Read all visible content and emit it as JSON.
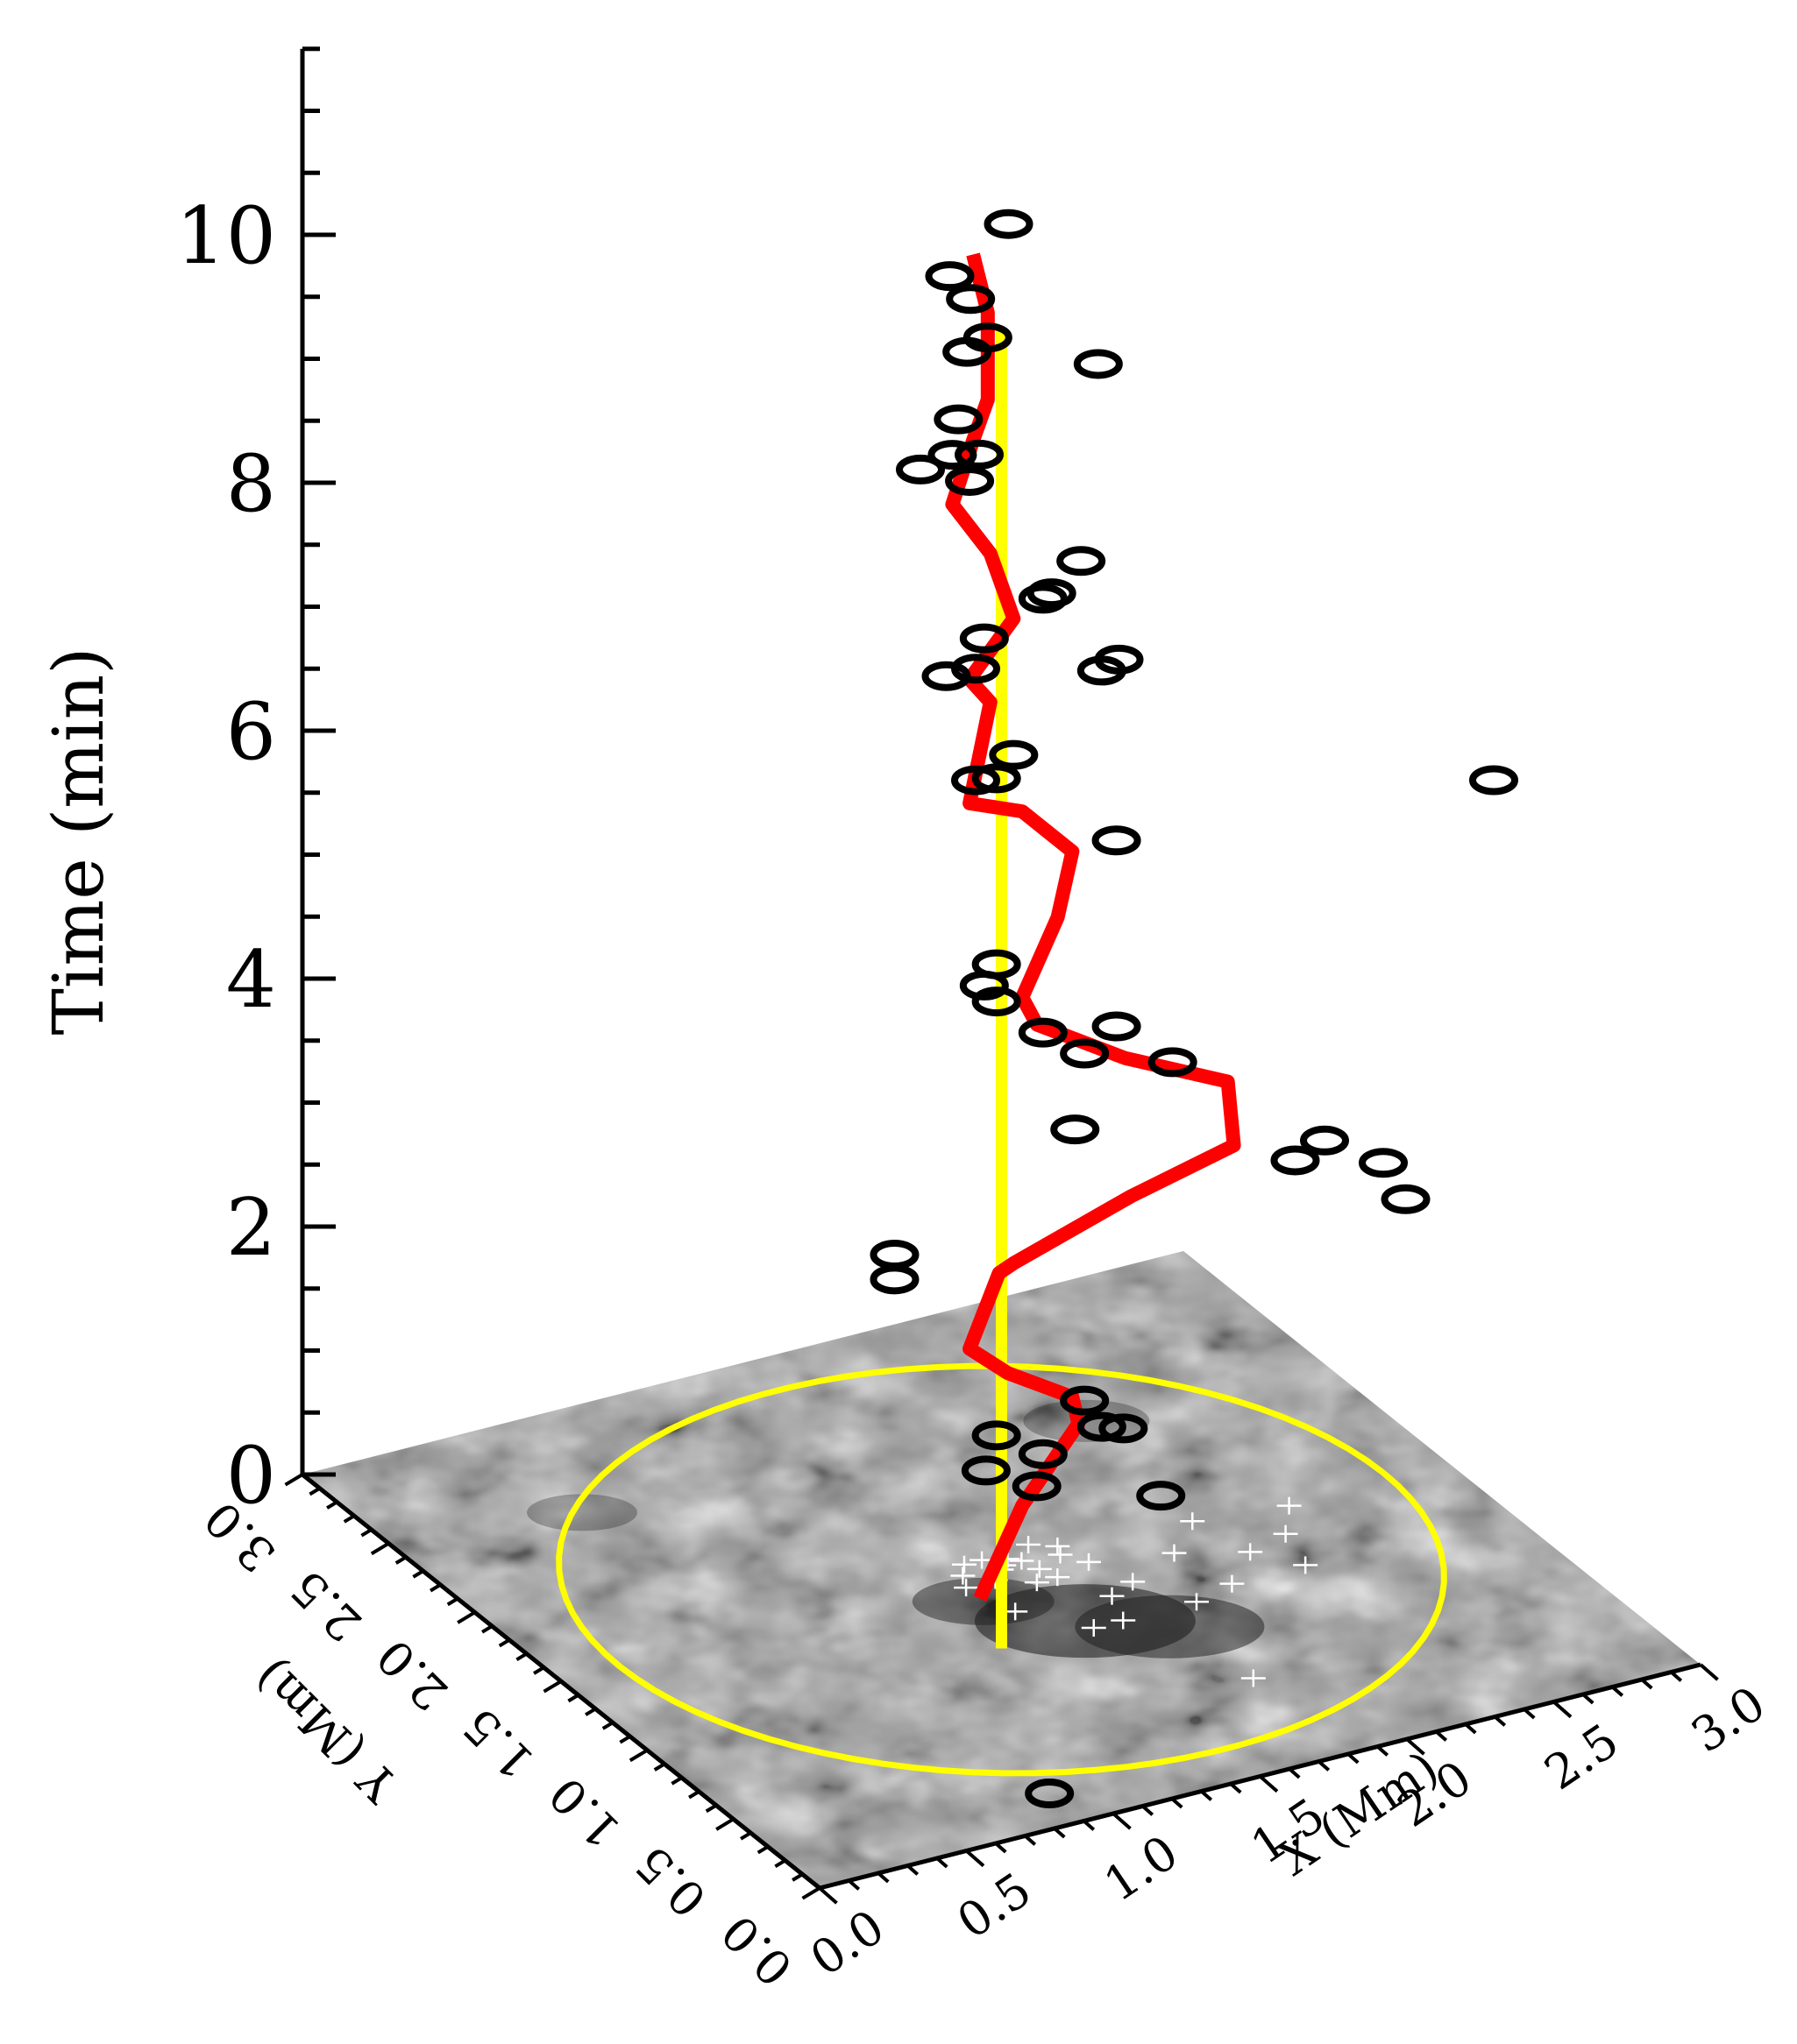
{
  "chart_data": {
    "type": "scatter",
    "projection": "3d-oblique",
    "axes": {
      "x": {
        "label": "X (Mm)",
        "range": [
          0,
          3
        ],
        "ticks": [
          "0.0",
          "0.5",
          "1.0",
          "1.5",
          "2.0",
          "2.5",
          "3.0"
        ],
        "minor_step": 0.1
      },
      "y": {
        "label": "Y (Mm)",
        "range": [
          0,
          3
        ],
        "ticks": [
          "0.0",
          "0.5",
          "1.0",
          "1.5",
          "2.0",
          "2.5",
          "3.0"
        ],
        "minor_step": 0.1
      },
      "z": {
        "label": "Time (min)",
        "range": [
          0,
          11.5
        ],
        "ticks": [
          "0",
          "2",
          "4",
          "6",
          "8",
          "10"
        ],
        "minor_step": 0.5
      }
    },
    "base_image": {
      "description": "grayscale magnetogram patch",
      "colormap": "gray"
    },
    "circle": {
      "center": [
        1.5,
        1.5
      ],
      "radius": 1.3,
      "color": "#ffff00"
    },
    "vertical_axis_line": {
      "x": 1.5,
      "y": 1.5,
      "z_range": [
        0,
        10
      ],
      "color": "#ffff00"
    },
    "series": [
      {
        "kind": "circles",
        "color": "#000000",
        "points": [
          [
            0.9,
            0.2,
            0.0
          ],
          [
            1.75,
            1.22,
            1.3
          ],
          [
            1.79,
            1.07,
            0.9
          ],
          [
            1.6,
            1.76,
            0.45
          ],
          [
            1.62,
            1.5,
            0.6
          ],
          [
            1.7,
            1.6,
            0.7
          ],
          [
            1.6,
            1.7,
            0.8
          ],
          [
            1.9,
            1.6,
            0.8
          ],
          [
            1.9,
            1.7,
            0.9
          ],
          [
            2.7,
            1.2,
            2.6
          ],
          [
            2.8,
            1.5,
            2.5
          ],
          [
            2.6,
            1.5,
            2.8
          ],
          [
            2.5,
            1.5,
            2.7
          ],
          [
            1.4,
            1.95,
            2.1
          ],
          [
            1.4,
            1.95,
            1.9
          ],
          [
            2.2,
            1.7,
            3.45
          ],
          [
            1.9,
            1.7,
            3.7
          ],
          [
            1.95,
            1.6,
            4.0
          ],
          [
            1.7,
            1.6,
            4.1
          ],
          [
            1.75,
            1.5,
            3.4
          ],
          [
            1.6,
            1.7,
            4.6
          ],
          [
            1.5,
            1.6,
            4.6
          ],
          [
            1.6,
            1.7,
            4.3
          ],
          [
            3.0,
            1.2,
            5.8
          ],
          [
            1.95,
            1.6,
            5.5
          ],
          [
            1.6,
            1.6,
            6.4
          ],
          [
            1.6,
            1.7,
            6.1
          ],
          [
            1.5,
            1.65,
            6.2
          ],
          [
            1.9,
            1.6,
            6.9
          ],
          [
            1.9,
            1.5,
            7.1
          ],
          [
            1.4,
            1.65,
            7.1
          ],
          [
            1.5,
            1.6,
            7.4
          ],
          [
            1.7,
            1.55,
            7.7
          ],
          [
            1.8,
            1.55,
            7.9
          ],
          [
            1.7,
            1.6,
            7.6
          ],
          [
            1.5,
            1.65,
            7.1
          ],
          [
            1.45,
            1.6,
            8.7
          ],
          [
            1.45,
            1.7,
            8.8
          ],
          [
            1.6,
            1.8,
            8.6
          ],
          [
            1.4,
            1.8,
            8.6
          ],
          [
            1.5,
            1.75,
            9.0
          ],
          [
            1.8,
            1.45,
            9.6
          ],
          [
            1.6,
            1.75,
            9.6
          ],
          [
            1.5,
            1.7,
            9.6
          ],
          [
            1.6,
            1.85,
            9.8
          ],
          [
            1.5,
            1.8,
            10.1
          ],
          [
            1.7,
            1.8,
            10.4
          ]
        ]
      },
      {
        "kind": "line",
        "color": "#ff0000",
        "points": [
          [
            1.35,
            1.37,
            0.0
          ],
          [
            1.6,
            1.55,
            0.4
          ],
          [
            1.85,
            1.65,
            0.8
          ],
          [
            1.8,
            1.6,
            1.1
          ],
          [
            1.55,
            1.55,
            1.5
          ],
          [
            1.45,
            1.6,
            1.7
          ],
          [
            1.55,
            1.6,
            2.25
          ],
          [
            1.6,
            1.6,
            2.3
          ],
          [
            2.0,
            1.6,
            2.6
          ],
          [
            2.35,
            1.6,
            2.8
          ],
          [
            2.3,
            1.55,
            3.4
          ],
          [
            1.95,
            1.55,
            3.8
          ],
          [
            1.65,
            1.55,
            4.25
          ],
          [
            1.6,
            1.55,
            4.5
          ],
          [
            1.75,
            1.6,
            5.0
          ],
          [
            1.8,
            1.6,
            5.5
          ],
          [
            1.6,
            1.55,
            6.0
          ],
          [
            1.45,
            1.6,
            6.1
          ],
          [
            1.55,
            1.65,
            6.8
          ],
          [
            1.45,
            1.6,
            7.1
          ],
          [
            1.6,
            1.6,
            7.5
          ],
          [
            1.55,
            1.65,
            8.0
          ],
          [
            1.45,
            1.7,
            8.4
          ],
          [
            1.55,
            1.75,
            8.8
          ],
          [
            1.6,
            1.75,
            9.1
          ],
          [
            1.6,
            1.75,
            9.8
          ],
          [
            1.55,
            1.75,
            10.3
          ]
        ]
      },
      {
        "kind": "plus",
        "color": "#ffffff",
        "points": [
          [
            1.42,
            1.58,
            0
          ],
          [
            1.5,
            1.5,
            0
          ],
          [
            1.6,
            1.45,
            0
          ],
          [
            1.55,
            1.55,
            0
          ],
          [
            1.65,
            1.6,
            0
          ],
          [
            1.45,
            1.45,
            0
          ],
          [
            1.52,
            1.52,
            0
          ],
          [
            1.58,
            1.52,
            0
          ],
          [
            1.48,
            1.58,
            0
          ],
          [
            1.7,
            1.5,
            0
          ],
          [
            1.75,
            1.42,
            0
          ],
          [
            1.38,
            1.52,
            0
          ],
          [
            1.62,
            1.38,
            0
          ],
          [
            1.55,
            1.38,
            0
          ],
          [
            1.35,
            1.45,
            0
          ],
          [
            2.15,
            1.5,
            0
          ],
          [
            2.0,
            1.35,
            0
          ],
          [
            2.2,
            1.25,
            0
          ],
          [
            2.3,
            1.1,
            0
          ],
          [
            2.05,
            1.1,
            0
          ],
          [
            1.8,
            1.25,
            0
          ],
          [
            1.7,
            1.2,
            0
          ],
          [
            1.65,
            1.05,
            0
          ],
          [
            1.55,
            1.05,
            0
          ],
          [
            1.9,
            1.05,
            0
          ],
          [
            1.4,
            1.25,
            0
          ],
          [
            1.8,
            0.55,
            0
          ],
          [
            2.35,
            1.3,
            0
          ],
          [
            2.45,
            1.45,
            0
          ],
          [
            1.72,
            1.55,
            0
          ]
        ]
      }
    ]
  }
}
